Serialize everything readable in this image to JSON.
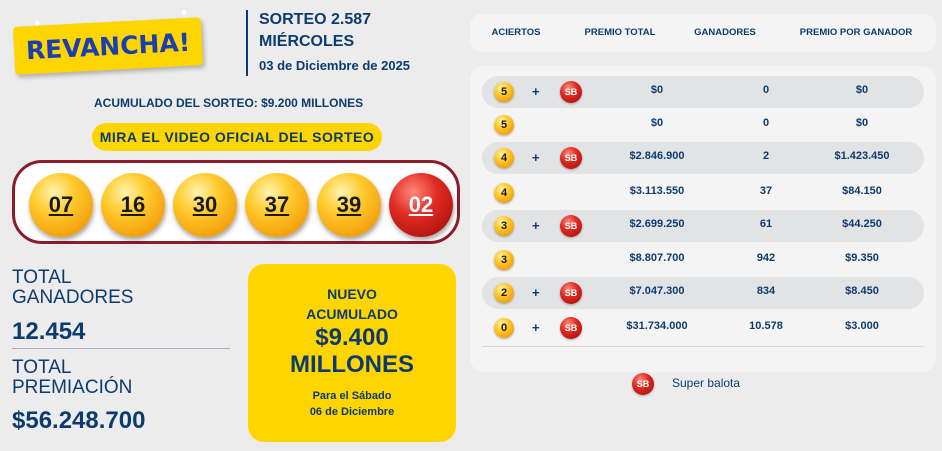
{
  "logo": {
    "text": "REVANCHA!"
  },
  "draw": {
    "number": "SORTEO 2.587",
    "day": "MIÉRCOLES",
    "date": "03 de Diciembre de 2025"
  },
  "accumulated_line": "ACUMULADO DEL SORTEO: $9.200 MILLONES",
  "video_button": "MIRA EL VIDEO OFICIAL DEL SORTEO",
  "balls": [
    "07",
    "16",
    "30",
    "37",
    "39"
  ],
  "super_ball": "02",
  "totals": {
    "winners_label": "TOTAL GANADORES",
    "winners_value": "12.454",
    "prize_label": "TOTAL PREMIACIÓN",
    "prize_value": "$56.248.700"
  },
  "jackpot": {
    "title_line1": "NUEVO",
    "title_line2": "ACUMULADO",
    "amount_line1": "$9.400",
    "amount_line2": "MILLONES",
    "for_line1": "Para el Sábado",
    "for_line2": "06 de Diciembre"
  },
  "table": {
    "headers": {
      "hits": "ACIERTOS",
      "total_prize": "PREMIO TOTAL",
      "winners": "GANADORES",
      "per_winner": "PREMIO POR GANADOR"
    },
    "rows": [
      {
        "hits": "5",
        "superball": true,
        "total": "$0",
        "winners": "0",
        "per": "$0"
      },
      {
        "hits": "5",
        "superball": false,
        "total": "$0",
        "winners": "0",
        "per": "$0"
      },
      {
        "hits": "4",
        "superball": true,
        "total": "$2.846.900",
        "winners": "2",
        "per": "$1.423.450"
      },
      {
        "hits": "4",
        "superball": false,
        "total": "$3.113.550",
        "winners": "37",
        "per": "$84.150"
      },
      {
        "hits": "3",
        "superball": true,
        "total": "$2.699.250",
        "winners": "61",
        "per": "$44.250"
      },
      {
        "hits": "3",
        "superball": false,
        "total": "$8.807.700",
        "winners": "942",
        "per": "$9.350"
      },
      {
        "hits": "2",
        "superball": true,
        "total": "$7.047.300",
        "winners": "834",
        "per": "$8.450"
      },
      {
        "hits": "0",
        "superball": true,
        "total": "$31.734.000",
        "winners": "10.578",
        "per": "$3.000"
      }
    ],
    "plus_sign": "+",
    "sb_text": "SB"
  },
  "legend": {
    "sb_text": "SB",
    "label": "Super balota"
  },
  "colors": {
    "navy": "#0d3b6e",
    "yellow": "#ffd500",
    "frame_red": "#8a1c2c",
    "background": "#ececec"
  }
}
